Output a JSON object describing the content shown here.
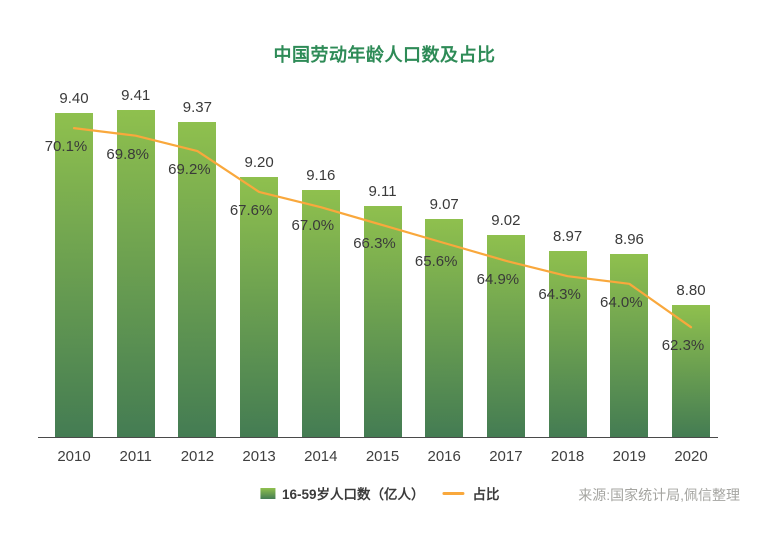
{
  "colors": {
    "title": "#2e8b57",
    "bar_top": "#8fc04e",
    "bar_bottom": "#447c53",
    "line": "#f9a83c",
    "label": "#3a3a3a",
    "axis": "#4a4a4a",
    "source": "#a5a5a1"
  },
  "chart_data": {
    "type": "bar+line",
    "title": "中国劳动年龄人口数及占比",
    "categories": [
      "2010",
      "2011",
      "2012",
      "2013",
      "2014",
      "2015",
      "2016",
      "2017",
      "2018",
      "2019",
      "2020"
    ],
    "series": [
      {
        "name": "16-59岁人口数（亿人）",
        "type": "bar",
        "axis": "left",
        "values": [
          9.4,
          9.41,
          9.37,
          9.2,
          9.16,
          9.11,
          9.07,
          9.02,
          8.97,
          8.96,
          8.8
        ],
        "label_format": "0.00"
      },
      {
        "name": "占比",
        "type": "line",
        "axis": "right",
        "unit": "%",
        "values": [
          70.1,
          69.8,
          69.2,
          67.6,
          67.0,
          66.3,
          65.6,
          64.9,
          64.3,
          64.0,
          62.3
        ],
        "label_format": "0.0%"
      }
    ],
    "ylim": [
      8.39,
      9.44
    ],
    "y2lim": [
      58,
      71.2
    ],
    "grid": false,
    "legend_position": "bottom",
    "source": "来源:国家统计局,佩信整理"
  }
}
